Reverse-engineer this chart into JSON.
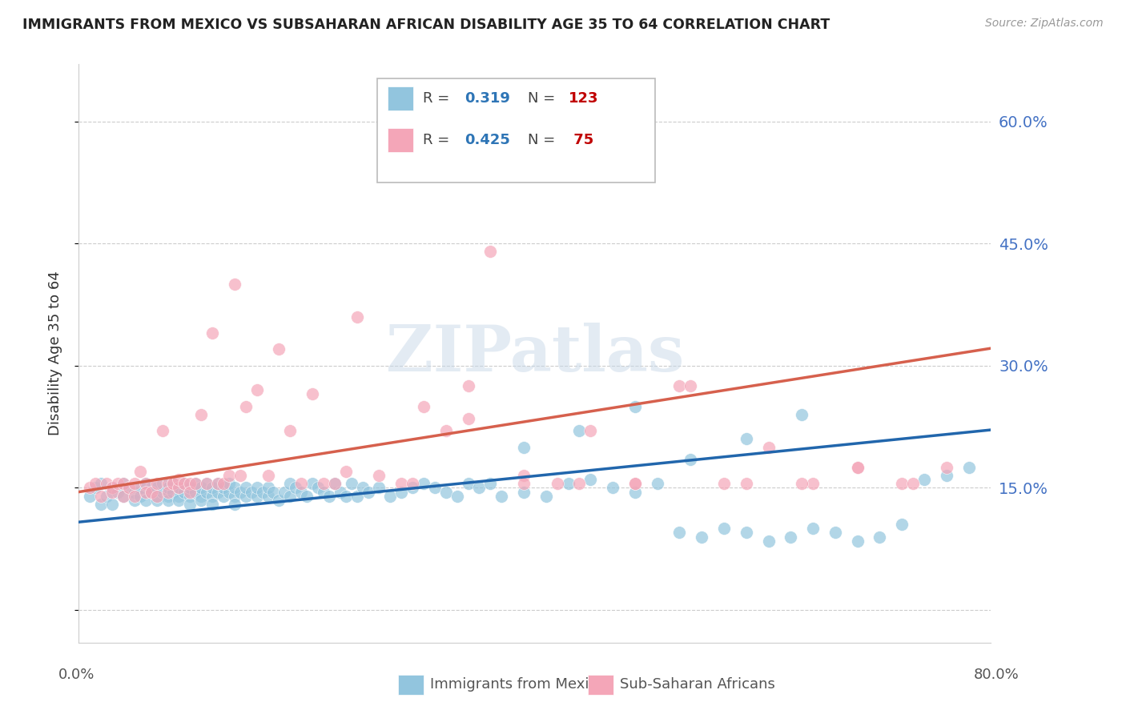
{
  "title": "IMMIGRANTS FROM MEXICO VS SUBSAHARAN AFRICAN DISABILITY AGE 35 TO 64 CORRELATION CHART",
  "source": "Source: ZipAtlas.com",
  "ylabel": "Disability Age 35 to 64",
  "legend_box_label1": "Immigrants from Mexico",
  "legend_box_label2": "Sub-Saharan Africans",
  "blue_color": "#92c5de",
  "pink_color": "#f4a6b8",
  "blue_line_color": "#2166ac",
  "pink_line_color": "#d6604d",
  "watermark": "ZIPatlas",
  "blue_line_intercept": 0.108,
  "blue_line_slope": 0.138,
  "pink_line_intercept": 0.145,
  "pink_line_slope": 0.215,
  "xlim": [
    0.0,
    0.82
  ],
  "ylim": [
    -0.04,
    0.67
  ],
  "right_yticks": [
    0.15,
    0.3,
    0.45,
    0.6
  ],
  "right_ytick_labels": [
    "15.0%",
    "30.0%",
    "45.0%",
    "60.0%"
  ],
  "mexico_x": [
    0.01,
    0.015,
    0.02,
    0.02,
    0.025,
    0.03,
    0.03,
    0.035,
    0.04,
    0.04,
    0.045,
    0.05,
    0.05,
    0.055,
    0.055,
    0.06,
    0.06,
    0.065,
    0.065,
    0.07,
    0.07,
    0.07,
    0.075,
    0.075,
    0.08,
    0.08,
    0.08,
    0.085,
    0.085,
    0.09,
    0.09,
    0.09,
    0.095,
    0.095,
    0.1,
    0.1,
    0.1,
    0.105,
    0.105,
    0.11,
    0.11,
    0.11,
    0.115,
    0.115,
    0.12,
    0.12,
    0.12,
    0.125,
    0.125,
    0.13,
    0.13,
    0.135,
    0.135,
    0.14,
    0.14,
    0.14,
    0.145,
    0.15,
    0.15,
    0.155,
    0.16,
    0.16,
    0.165,
    0.17,
    0.17,
    0.175,
    0.18,
    0.185,
    0.19,
    0.19,
    0.195,
    0.2,
    0.205,
    0.21,
    0.215,
    0.22,
    0.225,
    0.23,
    0.235,
    0.24,
    0.245,
    0.25,
    0.255,
    0.26,
    0.27,
    0.28,
    0.29,
    0.3,
    0.31,
    0.32,
    0.33,
    0.34,
    0.35,
    0.36,
    0.37,
    0.38,
    0.4,
    0.42,
    0.44,
    0.46,
    0.48,
    0.5,
    0.52,
    0.54,
    0.56,
    0.58,
    0.6,
    0.62,
    0.64,
    0.66,
    0.68,
    0.7,
    0.72,
    0.74,
    0.76,
    0.78,
    0.8,
    0.4,
    0.45,
    0.5,
    0.55,
    0.6,
    0.65
  ],
  "mexico_y": [
    0.14,
    0.15,
    0.13,
    0.155,
    0.14,
    0.15,
    0.13,
    0.145,
    0.14,
    0.155,
    0.15,
    0.145,
    0.135,
    0.15,
    0.14,
    0.155,
    0.135,
    0.15,
    0.145,
    0.14,
    0.15,
    0.135,
    0.145,
    0.155,
    0.14,
    0.15,
    0.135,
    0.145,
    0.155,
    0.14,
    0.15,
    0.135,
    0.145,
    0.155,
    0.14,
    0.15,
    0.13,
    0.145,
    0.155,
    0.14,
    0.15,
    0.135,
    0.145,
    0.155,
    0.14,
    0.15,
    0.13,
    0.145,
    0.155,
    0.14,
    0.15,
    0.145,
    0.155,
    0.14,
    0.15,
    0.13,
    0.145,
    0.14,
    0.15,
    0.145,
    0.14,
    0.15,
    0.145,
    0.14,
    0.15,
    0.145,
    0.135,
    0.145,
    0.14,
    0.155,
    0.15,
    0.145,
    0.14,
    0.155,
    0.15,
    0.145,
    0.14,
    0.155,
    0.145,
    0.14,
    0.155,
    0.14,
    0.15,
    0.145,
    0.15,
    0.14,
    0.145,
    0.15,
    0.155,
    0.15,
    0.145,
    0.14,
    0.155,
    0.15,
    0.155,
    0.14,
    0.145,
    0.14,
    0.155,
    0.16,
    0.15,
    0.145,
    0.155,
    0.095,
    0.09,
    0.1,
    0.095,
    0.085,
    0.09,
    0.1,
    0.095,
    0.085,
    0.09,
    0.105,
    0.16,
    0.165,
    0.175,
    0.2,
    0.22,
    0.25,
    0.185,
    0.21,
    0.24
  ],
  "africa_x": [
    0.01,
    0.015,
    0.02,
    0.025,
    0.03,
    0.03,
    0.035,
    0.04,
    0.04,
    0.045,
    0.05,
    0.05,
    0.055,
    0.06,
    0.06,
    0.065,
    0.07,
    0.07,
    0.075,
    0.08,
    0.08,
    0.085,
    0.09,
    0.09,
    0.095,
    0.1,
    0.1,
    0.105,
    0.11,
    0.115,
    0.12,
    0.125,
    0.13,
    0.135,
    0.14,
    0.145,
    0.15,
    0.16,
    0.17,
    0.18,
    0.19,
    0.2,
    0.21,
    0.22,
    0.23,
    0.24,
    0.25,
    0.27,
    0.29,
    0.31,
    0.33,
    0.35,
    0.37,
    0.4,
    0.43,
    0.46,
    0.5,
    0.54,
    0.58,
    0.62,
    0.66,
    0.7,
    0.74,
    0.78,
    0.3,
    0.35,
    0.4,
    0.45,
    0.5,
    0.55,
    0.6,
    0.65,
    0.7,
    0.75
  ],
  "africa_y": [
    0.15,
    0.155,
    0.14,
    0.155,
    0.15,
    0.145,
    0.155,
    0.14,
    0.155,
    0.15,
    0.155,
    0.14,
    0.17,
    0.155,
    0.145,
    0.145,
    0.155,
    0.14,
    0.22,
    0.155,
    0.145,
    0.155,
    0.15,
    0.16,
    0.155,
    0.155,
    0.145,
    0.155,
    0.24,
    0.155,
    0.34,
    0.155,
    0.155,
    0.165,
    0.4,
    0.165,
    0.25,
    0.27,
    0.165,
    0.32,
    0.22,
    0.155,
    0.265,
    0.155,
    0.155,
    0.17,
    0.36,
    0.165,
    0.155,
    0.25,
    0.22,
    0.275,
    0.44,
    0.165,
    0.155,
    0.22,
    0.155,
    0.275,
    0.155,
    0.2,
    0.155,
    0.175,
    0.155,
    0.175,
    0.155,
    0.235,
    0.155,
    0.155,
    0.155,
    0.275,
    0.155,
    0.155,
    0.175,
    0.155
  ]
}
